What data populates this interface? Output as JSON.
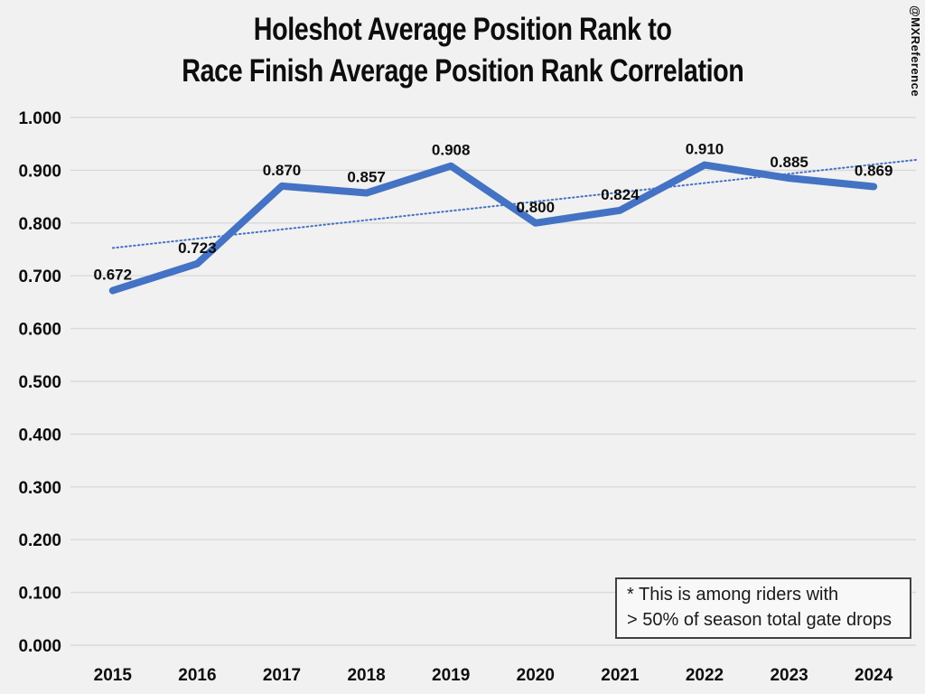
{
  "page": {
    "background_color": "#f1f1f1",
    "text_color": "#0d0d0d"
  },
  "title": {
    "line1": "Holeshot Average Position Rank to",
    "line2": "Race Finish Average Position Rank Correlation"
  },
  "watermark": "@MXReference",
  "annotation": {
    "line1": "* This is among riders with",
    "line2": "> 50% of season total gate drops"
  },
  "chart_data": {
    "type": "line",
    "title": "Holeshot Average Position Rank to Race Finish Average Position Rank Correlation",
    "categories": [
      "2015",
      "2016",
      "2017",
      "2018",
      "2019",
      "2020",
      "2021",
      "2022",
      "2023",
      "2024"
    ],
    "series": [
      {
        "name": "Holeshot-to-finish rank correlation",
        "values": [
          0.672,
          0.723,
          0.87,
          0.857,
          0.908,
          0.8,
          0.824,
          0.91,
          0.885,
          0.869
        ],
        "color": "#4472c4",
        "stroke_width": 8
      }
    ],
    "data_labels": [
      "0.672",
      "0.723",
      "0.870",
      "0.857",
      "0.908",
      "0.800",
      "0.824",
      "0.910",
      "0.885",
      "0.869"
    ],
    "trendline": {
      "kind": "linear",
      "style": "dotted",
      "color": "#4472c4",
      "forecast_forward_periods": 0.5
    },
    "xlabel": "",
    "ylabel": "",
    "ylim": [
      0.0,
      1.0
    ],
    "ytick_step": 0.1,
    "ytick_decimals": 3,
    "grid": true,
    "gridline_color": "#d9d9d9",
    "legend_position": "none"
  }
}
